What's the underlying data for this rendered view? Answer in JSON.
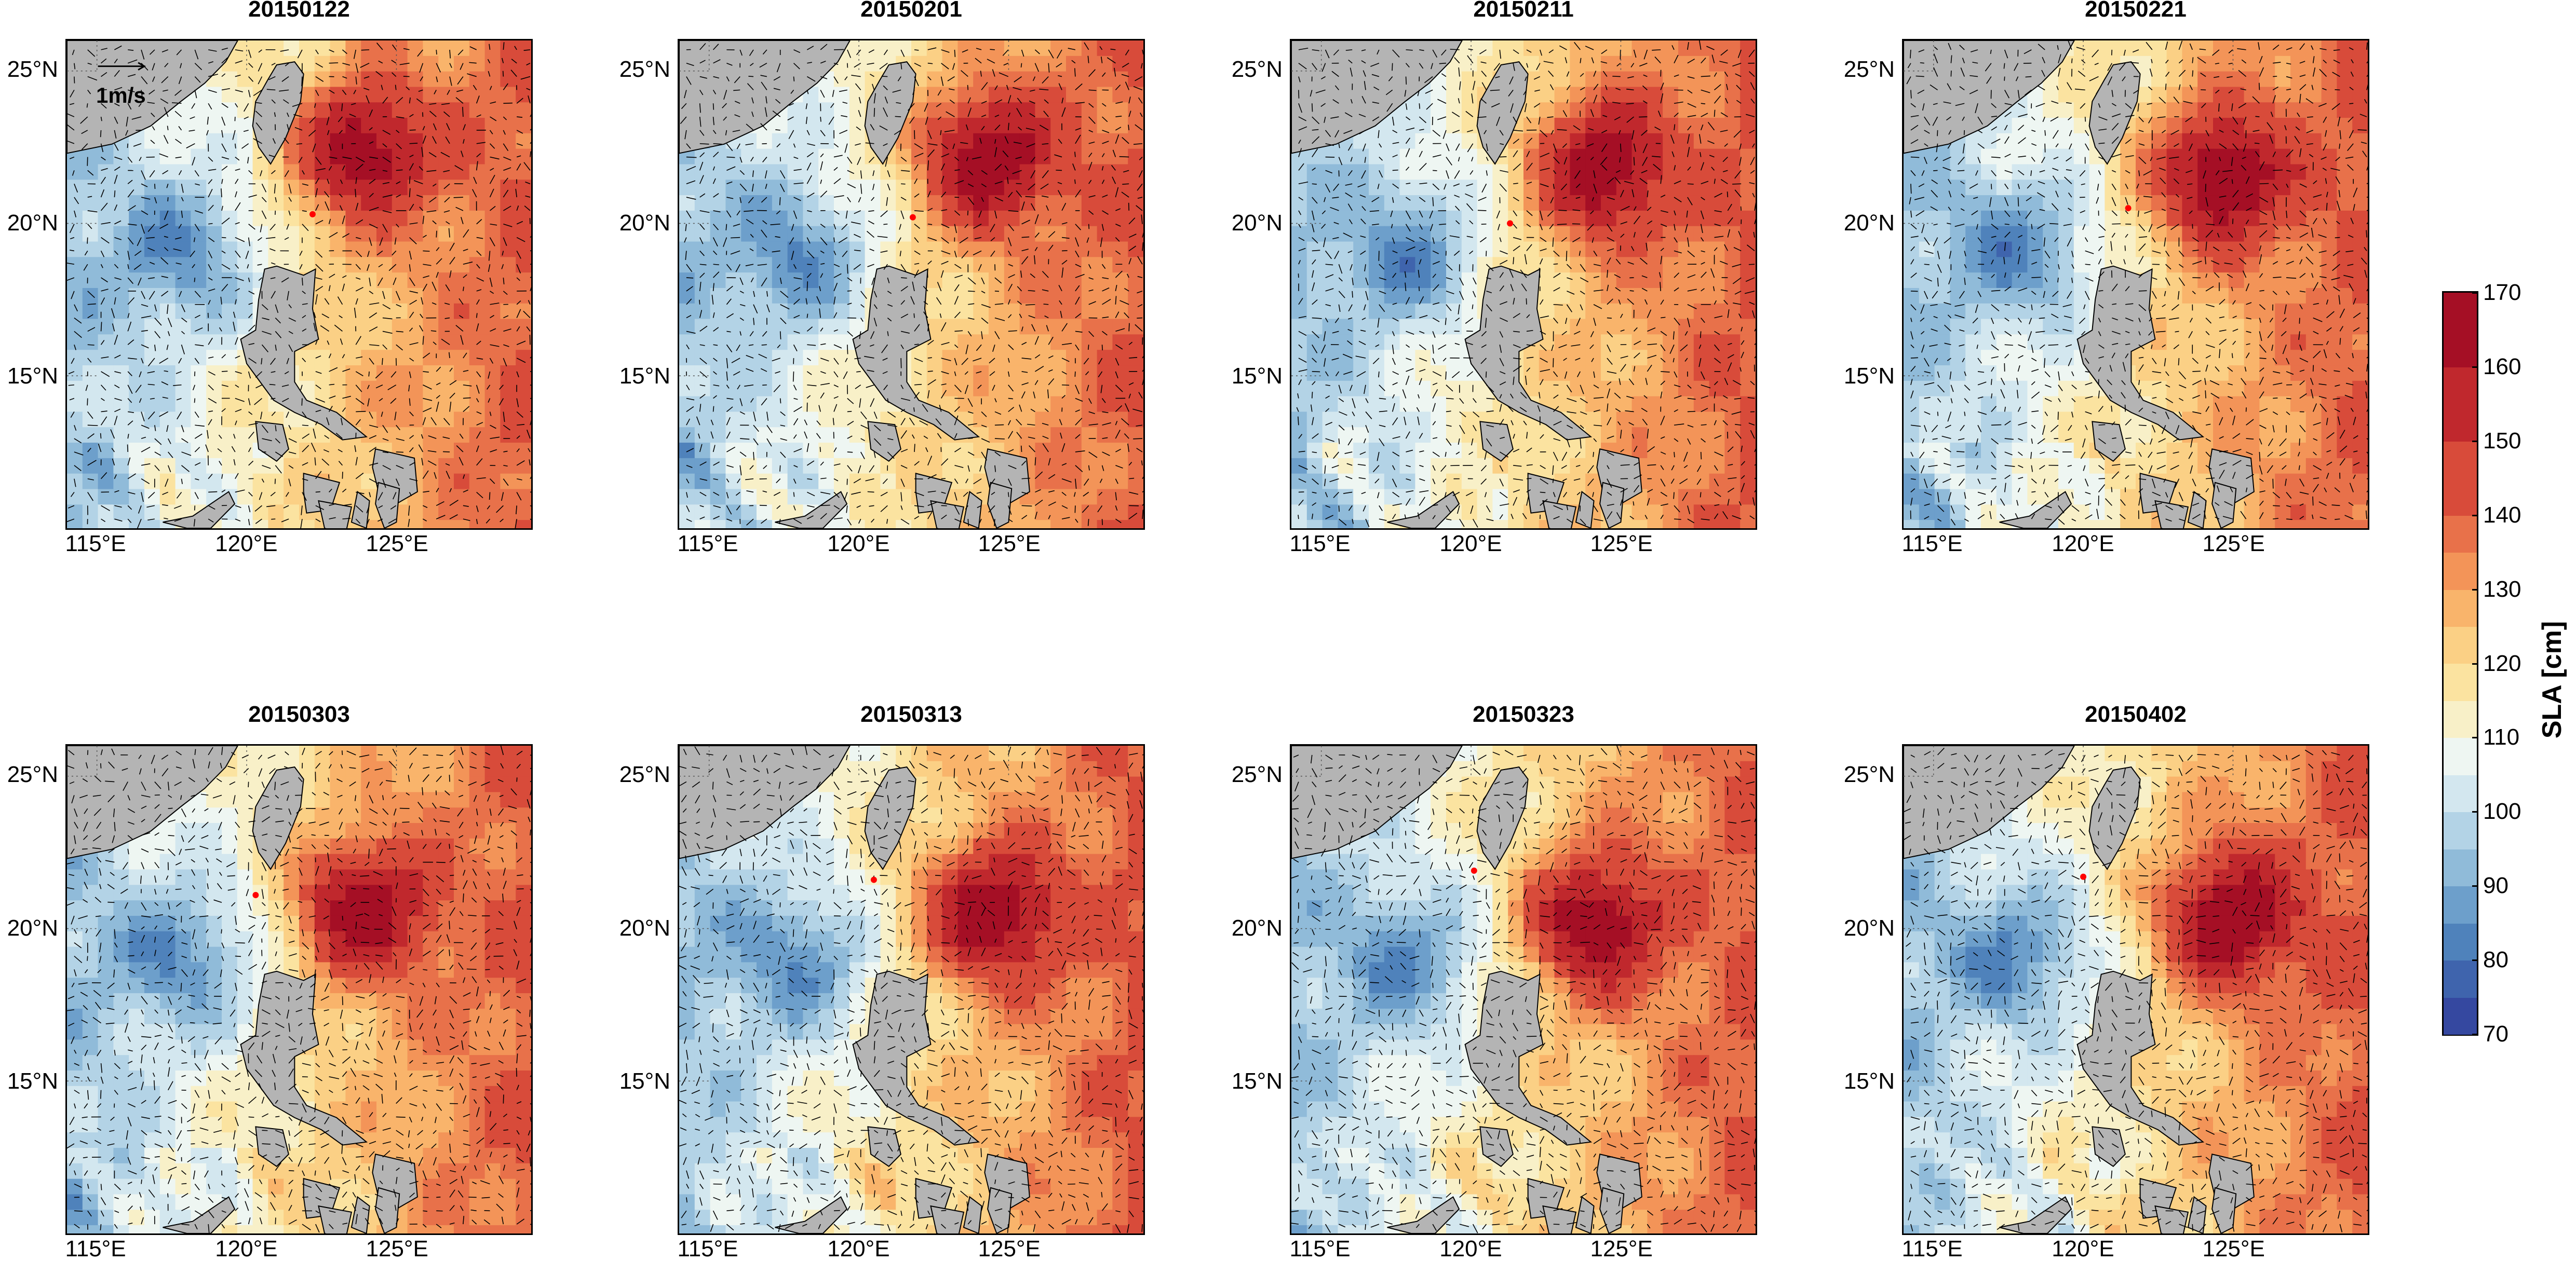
{
  "panels": [
    {
      "title": "20150122",
      "marker": [
        122.2,
        20.3
      ],
      "high_center": [
        123.8,
        22.4
      ],
      "scale_label": "1m/s"
    },
    {
      "title": "20150201",
      "marker": [
        121.8,
        20.2
      ],
      "high_center": [
        124.2,
        22.1
      ],
      "scale_label": ""
    },
    {
      "title": "20150211",
      "marker": [
        121.3,
        20.0
      ],
      "high_center": [
        124.3,
        21.8
      ],
      "scale_label": ""
    },
    {
      "title": "20150221",
      "marker": [
        121.5,
        20.5
      ],
      "high_center": [
        124.5,
        21.5
      ],
      "scale_label": ""
    },
    {
      "title": "20150303",
      "marker": [
        120.3,
        21.1
      ],
      "high_center": [
        123.8,
        20.6
      ],
      "scale_label": ""
    },
    {
      "title": "20150313",
      "marker": [
        120.5,
        21.6
      ],
      "high_center": [
        124.3,
        20.5
      ],
      "scale_label": ""
    },
    {
      "title": "20150323",
      "marker": [
        120.1,
        21.9
      ],
      "high_center": [
        124.0,
        20.2
      ],
      "scale_label": ""
    },
    {
      "title": "20150402",
      "marker": [
        120.0,
        21.7
      ],
      "high_center": [
        124.8,
        20.4
      ],
      "scale_label": ""
    }
  ],
  "axes": {
    "lon_range": [
      114.0,
      129.5
    ],
    "lat_range": [
      10.0,
      26.0
    ],
    "lon_ticks": [
      {
        "value": 115,
        "label": "115°E"
      },
      {
        "value": 120,
        "label": "120°E"
      },
      {
        "value": 125,
        "label": "125°E"
      }
    ],
    "lat_ticks": [
      {
        "value": 25,
        "label": "25°N"
      },
      {
        "value": 20,
        "label": "20°N"
      },
      {
        "value": 15,
        "label": "15°N"
      }
    ]
  },
  "colorbar": {
    "label": "SLA [cm]",
    "range": [
      70,
      170
    ],
    "ticks": [
      70,
      80,
      90,
      100,
      110,
      120,
      130,
      140,
      150,
      160,
      170
    ],
    "colors": [
      "#3548a0",
      "#3f64ad",
      "#4f82bb",
      "#6d9fcb",
      "#90bbd9",
      "#b3d3e6",
      "#d3e7ef",
      "#eef6f2",
      "#f8f0c8",
      "#fbe3a0",
      "#fbd085",
      "#f9b46b",
      "#f39458",
      "#e8714a",
      "#d84b3a",
      "#c0282d",
      "#a50f25"
    ],
    "color_levels": [
      70,
      75,
      80,
      85,
      90,
      95,
      100,
      105,
      110,
      115,
      120,
      125,
      130,
      135,
      140,
      150,
      160
    ]
  },
  "colors": {
    "land": "#b4b4b4",
    "marker": "#ff0000",
    "arrows": "#000000"
  }
}
